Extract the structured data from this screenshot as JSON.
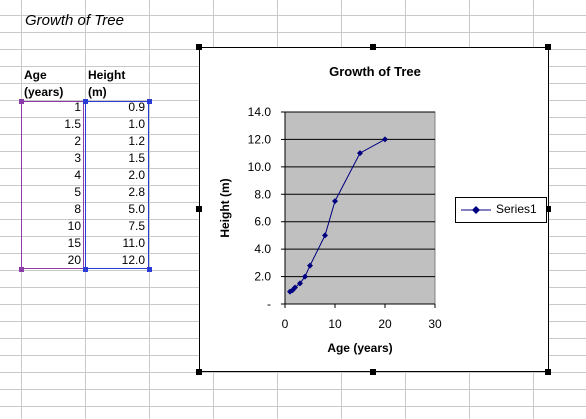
{
  "sheet": {
    "title": "Growth of Tree",
    "headers": {
      "age_line1": "Age",
      "age_line2": "(years)",
      "height_line1": "Height",
      "height_line2": "(m)"
    },
    "rows": [
      {
        "age": "1",
        "height": "0.9"
      },
      {
        "age": "1.5",
        "height": "1.0"
      },
      {
        "age": "2",
        "height": "1.2"
      },
      {
        "age": "3",
        "height": "1.5"
      },
      {
        "age": "4",
        "height": "2.0"
      },
      {
        "age": "5",
        "height": "2.8"
      },
      {
        "age": "8",
        "height": "5.0"
      },
      {
        "age": "10",
        "height": "7.5"
      },
      {
        "age": "15",
        "height": "11.0"
      },
      {
        "age": "20",
        "height": "12.0"
      }
    ]
  },
  "chart_data": {
    "type": "line",
    "title": "Growth of Tree",
    "xlabel": "Age (years)",
    "ylabel": "Height (m)",
    "xlim": [
      0,
      30
    ],
    "ylim": [
      0,
      14
    ],
    "xticks": [
      "0",
      "10",
      "20",
      "30"
    ],
    "yticks": [
      "-",
      "2.0",
      "4.0",
      "6.0",
      "8.0",
      "10.0",
      "12.0",
      "14.0"
    ],
    "grid": true,
    "plot_background": "#c0c0c0",
    "series_color": "#000080",
    "legend_position": "right",
    "series": [
      {
        "name": "Series1",
        "x": [
          1,
          1.5,
          2,
          3,
          4,
          5,
          8,
          10,
          15,
          20
        ],
        "y": [
          0.9,
          1.0,
          1.2,
          1.5,
          2.0,
          2.8,
          5.0,
          7.5,
          11.0,
          12.0
        ]
      }
    ]
  }
}
